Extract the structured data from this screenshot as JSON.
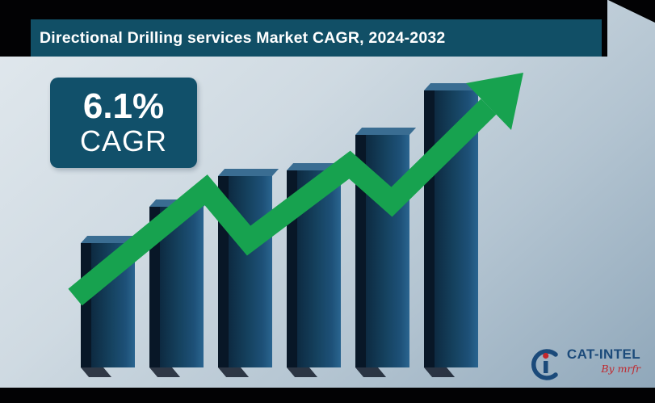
{
  "header": {
    "title": "Directional Drilling services Market CAGR, 2024-2032"
  },
  "badge": {
    "value": "6.1%",
    "label": "CAGR"
  },
  "logo": {
    "name": "CAT-INTEL",
    "tagline": "By mrfr"
  },
  "colors": {
    "frame": "#020204",
    "header_bg": "#114f66",
    "badge_bg": "#11506a",
    "bar_face": "#15425f",
    "bar_side": "#081727",
    "bar_top": "#3a6d92",
    "arrow_green": "#17a24f",
    "background_light": "#cfdae2",
    "background_dark": "#8ea6b9",
    "logo_blue": "#1b4a7a",
    "logo_red": "#c1272d"
  },
  "chart_data": {
    "type": "bar",
    "title": "Directional Drilling services Market CAGR, 2024-2032",
    "period": "2024-2032",
    "cagr_annotation": "6.1% CAGR",
    "categories": [
      "",
      "",
      "",
      "",
      "",
      ""
    ],
    "values": [
      45,
      58,
      69,
      71,
      84,
      100
    ],
    "xlabel": "",
    "ylabel": "",
    "ylim": [
      0,
      100
    ],
    "value_unit": "relative bar height % (axes unlabeled in graphic)",
    "grid": false,
    "legend": false,
    "overlay": "green upward zigzag trend arrow"
  }
}
